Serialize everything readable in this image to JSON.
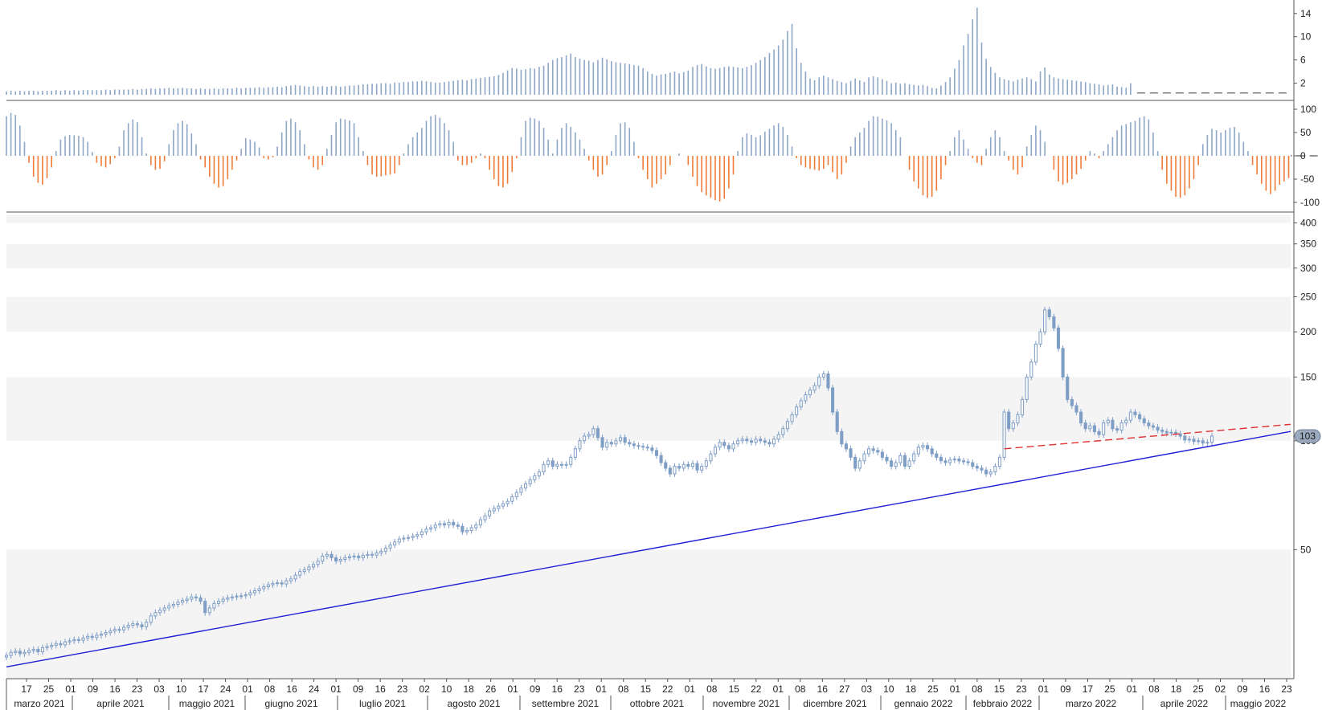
{
  "chart_data": [
    {
      "type": "bar",
      "panel": "volume",
      "y_ticks": [
        "14",
        "10",
        "6",
        "2"
      ],
      "ylim": [
        0,
        15.5
      ],
      "dashed_reference": 0.3,
      "note_values": "daily histogram, one bar per trading day, values approximate",
      "values": [
        0.6,
        0.7,
        0.6,
        0.7,
        0.6,
        0.7,
        0.7,
        0.6,
        0.7,
        0.7,
        0.7,
        0.8,
        0.7,
        0.8,
        0.7,
        0.8,
        0.7,
        0.8,
        0.8,
        0.8,
        0.8,
        0.8,
        0.9,
        0.8,
        0.9,
        0.9,
        0.9,
        0.9,
        1.0,
        0.9,
        1.0,
        1.0,
        1.1,
        1.0,
        1.1,
        1.1,
        1.2,
        1.1,
        1.1,
        1.2,
        1.1,
        1.1,
        1.0,
        1.1,
        1.0,
        1.0,
        1.1,
        1.0,
        1.1,
        1.1,
        1.1,
        1.2,
        1.1,
        1.2,
        1.2,
        1.2,
        1.3,
        1.2,
        1.3,
        1.3,
        1.4,
        1.3,
        1.5,
        1.6,
        1.7,
        1.6,
        1.5,
        1.4,
        1.5,
        1.4,
        1.5,
        1.4,
        1.5,
        1.5,
        1.4,
        1.5,
        1.6,
        1.6,
        1.7,
        1.8,
        1.8,
        1.9,
        1.9,
        2.0,
        2.0,
        1.9,
        2.1,
        2.1,
        2.2,
        2.2,
        2.3,
        2.3,
        2.4,
        2.3,
        2.2,
        2.1,
        2.1,
        2.2,
        2.3,
        2.4,
        2.5,
        2.6,
        2.5,
        2.7,
        2.8,
        2.9,
        3.0,
        3.1,
        3.2,
        3.4,
        3.8,
        4.2,
        4.6,
        4.5,
        4.3,
        4.4,
        4.6,
        4.5,
        4.8,
        5.0,
        5.5,
        6.0,
        6.3,
        6.5,
        6.8,
        7.1,
        6.5,
        6.2,
        6.0,
        5.9,
        5.6,
        6.0,
        6.4,
        6.1,
        5.8,
        5.6,
        5.5,
        5.4,
        5.3,
        5.1,
        5.0,
        4.6,
        4.0,
        3.6,
        3.3,
        3.5,
        3.6,
        3.8,
        4.0,
        3.7,
        3.9,
        4.2,
        4.8,
        5.1,
        5.3,
        4.9,
        4.6,
        4.5,
        4.6,
        4.8,
        4.9,
        4.8,
        4.7,
        4.6,
        4.8,
        5.1,
        5.5,
        6.0,
        6.5,
        7.2,
        7.8,
        8.5,
        9.5,
        11.0,
        12.2,
        8.0,
        5.5,
        4.0,
        2.8,
        2.5,
        3.0,
        3.3,
        3.0,
        2.7,
        2.4,
        2.2,
        2.0,
        2.4,
        2.8,
        2.5,
        2.2,
        3.0,
        3.2,
        3.0,
        2.7,
        2.4,
        2.0,
        2.1,
        1.9,
        2.0,
        1.8,
        1.7,
        1.6,
        1.7,
        1.5,
        1.2,
        1.1,
        1.6,
        2.2,
        3.0,
        4.5,
        6.0,
        8.5,
        10.5,
        13.0,
        15.0,
        9.0,
        6.2,
        4.8,
        3.8,
        3.0,
        2.7,
        2.5,
        2.3,
        2.6,
        2.8,
        3.0,
        2.7,
        2.3,
        4.0,
        4.7,
        3.5,
        3.0,
        2.8,
        2.7,
        2.6,
        2.5,
        2.4,
        2.3,
        2.2,
        2.0,
        1.9,
        1.8,
        1.6,
        1.7,
        1.8,
        1.4,
        1.3,
        1.2,
        2.0
      ]
    },
    {
      "type": "bar",
      "panel": "oscillator",
      "y_ticks": [
        "100",
        "50",
        "0",
        "-50",
        "-100"
      ],
      "ylim": [
        -118,
        118
      ],
      "positive_color": "#8ea6c8",
      "negative_color": "#f07b39",
      "note_values": "bipolar histogram, values approximate",
      "values": [
        85,
        92,
        88,
        65,
        30,
        -15,
        -45,
        -58,
        -62,
        -48,
        -25,
        10,
        35,
        42,
        45,
        44,
        43,
        40,
        30,
        8,
        -15,
        -22,
        -25,
        -18,
        -5,
        20,
        55,
        70,
        78,
        72,
        40,
        5,
        -20,
        -30,
        -28,
        -12,
        25,
        55,
        70,
        75,
        68,
        48,
        25,
        -8,
        -25,
        -45,
        -60,
        -68,
        -65,
        -50,
        -30,
        -10,
        15,
        38,
        35,
        30,
        18,
        -5,
        -8,
        -3,
        20,
        50,
        75,
        80,
        72,
        55,
        25,
        -8,
        -25,
        -30,
        -20,
        15,
        45,
        72,
        80,
        78,
        76,
        70,
        40,
        10,
        -20,
        -40,
        -45,
        -44,
        -42,
        -40,
        -38,
        -20,
        5,
        25,
        40,
        50,
        60,
        75,
        85,
        88,
        82,
        70,
        55,
        30,
        -10,
        -20,
        -20,
        -15,
        -5,
        5,
        -5,
        -30,
        -50,
        -65,
        -68,
        -60,
        -35,
        -5,
        40,
        75,
        82,
        80,
        75,
        60,
        35,
        5,
        35,
        60,
        70,
        62,
        50,
        35,
        15,
        -10,
        -30,
        -45,
        -40,
        -20,
        10,
        45,
        70,
        72,
        60,
        30,
        -5,
        -30,
        -50,
        -68,
        -60,
        -50,
        -40,
        -20,
        0,
        5,
        0,
        -20,
        -45,
        -65,
        -78,
        -85,
        -90,
        -95,
        -98,
        -92,
        -70,
        -40,
        10,
        40,
        48,
        45,
        40,
        44,
        52,
        58,
        65,
        70,
        62,
        45,
        20,
        -5,
        -20,
        -25,
        -28,
        -30,
        -32,
        -28,
        -20,
        -35,
        -50,
        -40,
        -15,
        20,
        40,
        50,
        60,
        75,
        85,
        84,
        80,
        76,
        70,
        55,
        40,
        0,
        -30,
        -55,
        -70,
        -85,
        -90,
        -88,
        -75,
        -50,
        -20,
        10,
        40,
        55,
        35,
        15,
        -5,
        -15,
        -20,
        15,
        40,
        55,
        40,
        10,
        -10,
        -30,
        -40,
        -25,
        20,
        45,
        65,
        55,
        30,
        0,
        -30,
        -55,
        -62,
        -58,
        -50,
        -40,
        -28,
        -10,
        10,
        5,
        -5,
        10,
        25,
        40,
        55,
        65,
        68,
        72,
        75,
        82,
        85,
        78,
        50,
        10,
        -30,
        -60,
        -75,
        -88,
        -90,
        -85,
        -70,
        -50,
        -20,
        25,
        45,
        58,
        55,
        50,
        55,
        60,
        62,
        50,
        30,
        10,
        -20,
        -40,
        -60,
        -75,
        -82,
        -75,
        -62,
        -55,
        -48,
        -40,
        -30,
        -15,
        5,
        20
      ]
    },
    {
      "type": "candlestick",
      "panel": "price",
      "scale": "log",
      "y_ticks": [
        "400",
        "350",
        "300",
        "250",
        "200",
        "150",
        "100",
        "50"
      ],
      "ylim": [
        22,
        420
      ],
      "last_value_label": "103",
      "up_color": "#ffffff",
      "down_color": "#7f9ec6",
      "note_values": "approximate daily closing prices, read from log axis",
      "closes": [
        25.5,
        26.0,
        26.2,
        25.8,
        26.0,
        26.3,
        26.5,
        26.1,
        26.8,
        27.0,
        27.2,
        27.5,
        27.3,
        27.8,
        28.0,
        28.2,
        28.1,
        28.5,
        28.8,
        28.6,
        29.0,
        29.2,
        29.5,
        29.8,
        30.1,
        30.0,
        30.5,
        30.9,
        31.2,
        31.0,
        30.6,
        31.5,
        32.8,
        33.5,
        34.0,
        34.5,
        35.0,
        35.3,
        35.8,
        36.2,
        36.5,
        37.0,
        36.8,
        36.0,
        33.5,
        34.5,
        35.5,
        36.0,
        36.5,
        36.8,
        37.0,
        37.2,
        37.3,
        37.5,
        38.0,
        38.5,
        39.0,
        39.5,
        40.0,
        40.3,
        40.5,
        40.2,
        41.0,
        41.5,
        42.5,
        43.5,
        44.0,
        44.8,
        45.5,
        46.5,
        48.0,
        48.5,
        47.5,
        46.5,
        47.0,
        47.5,
        47.8,
        48.0,
        47.5,
        48.2,
        48.5,
        48.3,
        49.0,
        49.5,
        50.5,
        51.5,
        52.5,
        53.5,
        53.8,
        54.0,
        54.5,
        55.0,
        56.0,
        57.0,
        57.5,
        58.5,
        59.0,
        58.5,
        59.5,
        58.5,
        58.0,
        56.0,
        56.5,
        57.5,
        58.5,
        60.5,
        62.0,
        64.0,
        65.0,
        66.0,
        67.0,
        68.0,
        70.0,
        72.0,
        74.0,
        76.0,
        78.0,
        80.0,
        82.0,
        86.0,
        88.0,
        85.0,
        86.0,
        85.5,
        86.0,
        90.0,
        95.0,
        100.0,
        103.0,
        104.0,
        108.0,
        102.0,
        96.0,
        99.0,
        98.0,
        100.0,
        102.0,
        99.0,
        98.0,
        97.0,
        96.5,
        96.0,
        95.5,
        94.0,
        91.0,
        87.0,
        84.0,
        81.0,
        85.0,
        84.0,
        86.0,
        85.0,
        86.5,
        83.0,
        85.0,
        88.0,
        92.0,
        96.0,
        99.0,
        97.0,
        95.0,
        98.0,
        100.0,
        101.0,
        100.0,
        99.0,
        101.0,
        100.0,
        99.0,
        98.0,
        101.0,
        104.0,
        108.0,
        113.0,
        118.0,
        124.0,
        129.0,
        134.0,
        138.0,
        142.0,
        150.0,
        153.0,
        140.0,
        120.0,
        106.0,
        98.0,
        95.0,
        90.0,
        84.0,
        88.0,
        92.0,
        95.0,
        94.0,
        93.0,
        90.0,
        88.0,
        85.0,
        87.0,
        91.0,
        85.0,
        88.0,
        92.0,
        96.0,
        97.0,
        95.0,
        92.0,
        90.0,
        88.0,
        87.0,
        88.5,
        89.0,
        88.0,
        87.5,
        87.0,
        85.0,
        84.0,
        83.0,
        81.0,
        82.0,
        85.0,
        90.0,
        120.0,
        108.0,
        112.0,
        118.0,
        130.0,
        150.0,
        165.0,
        185.0,
        200.0,
        230.0,
        220.0,
        205.0,
        180.0,
        150.0,
        130.0,
        125.0,
        120.0,
        112.0,
        108.0,
        110.0,
        106.0,
        104.0,
        112.0,
        114.0,
        108.0,
        107.0,
        112.0,
        114.0,
        120.0,
        118.0,
        115.0,
        112.0,
        110.0,
        109.0,
        107.0,
        106.0,
        105.0,
        105.5,
        104.5,
        103.0,
        100.5,
        101.0,
        99.5,
        100.0,
        98.5,
        99.0,
        103.0
      ]
    }
  ],
  "overlays": {
    "support_line": {
      "color": "#1f1fd6",
      "style": "solid"
    },
    "resistance_line": {
      "color": "#e03030",
      "style": "dashed"
    }
  },
  "x_axis": {
    "day_ticks": [
      "17",
      "25",
      "01",
      "09",
      "16",
      "23",
      "03",
      "10",
      "17",
      "24",
      "01",
      "08",
      "16",
      "24",
      "01",
      "09",
      "16",
      "23",
      "02",
      "10",
      "18",
      "26",
      "01",
      "09",
      "16",
      "23",
      "01",
      "08",
      "15",
      "22",
      "01",
      "08",
      "15",
      "22",
      "01",
      "08",
      "16",
      "27",
      "03",
      "10",
      "18",
      "25",
      "01",
      "08",
      "15",
      "23",
      "01",
      "09",
      "17",
      "25",
      "01",
      "08",
      "18",
      "25",
      "02",
      "09",
      "16",
      "23"
    ],
    "months": [
      "marzo 2021",
      "aprile 2021",
      "maggio 2021",
      "giugno 2021",
      "luglio 2021",
      "agosto 2021",
      "settembre 2021",
      "ottobre 2021",
      "novembre 2021",
      "dicembre 2021",
      "gennaio 2022",
      "febbraio 2022",
      "marzo 2022",
      "aprile 2022",
      "maggio 2022"
    ]
  }
}
